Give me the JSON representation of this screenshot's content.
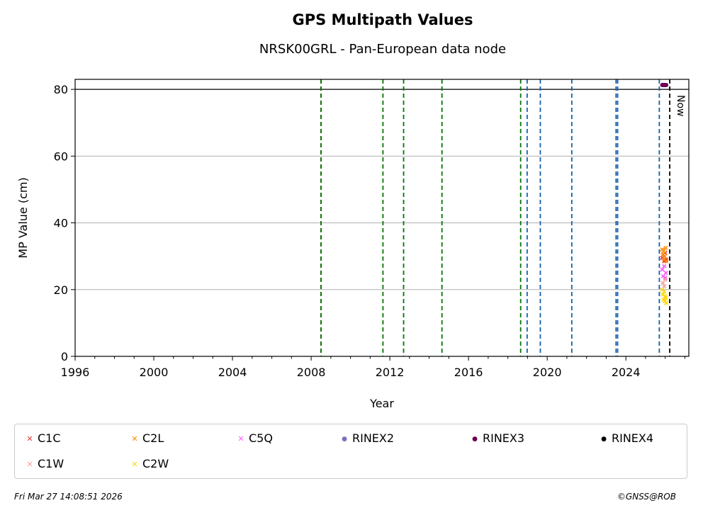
{
  "title": "GPS Multipath Values",
  "subtitle": "NRSK00GRL - Pan-European data node",
  "footer": {
    "timestamp": "Fri Mar 27 14:08:51 2026",
    "copyright": "©GNSS@ROB"
  },
  "colors": {
    "green_line": "#007700",
    "blue_line": "#1060b0",
    "red_line": "#dd0000",
    "now_line": "#000000",
    "grid": "#b0b0b0"
  },
  "chart_data": {
    "type": "scatter",
    "xlabel": "Year",
    "ylabel": "MP Value (cm)",
    "xlim": [
      1996,
      2027.2
    ],
    "ylim": [
      0,
      83
    ],
    "x_ticks": [
      "1996",
      "2000",
      "2004",
      "2008",
      "2012",
      "2016",
      "2020",
      "2024"
    ],
    "y_ticks": [
      "0",
      "20",
      "40",
      "60",
      "80"
    ],
    "grid": "horizontal",
    "reference_line_y": 80,
    "now_label": "Now",
    "now_x": 2026.23,
    "event_lines": [
      {
        "x": 2008.5,
        "color": "red"
      },
      {
        "x": 2008.5,
        "color": "green"
      },
      {
        "x": 2011.65,
        "color": "green"
      },
      {
        "x": 2012.7,
        "color": "green"
      },
      {
        "x": 2014.65,
        "color": "green"
      },
      {
        "x": 2018.65,
        "color": "green"
      },
      {
        "x": 2018.98,
        "color": "blue"
      },
      {
        "x": 2019.65,
        "color": "blue"
      },
      {
        "x": 2021.25,
        "color": "blue"
      },
      {
        "x": 2023.5,
        "color": "blue"
      },
      {
        "x": 2023.58,
        "color": "blue"
      },
      {
        "x": 2025.7,
        "color": "blue"
      }
    ],
    "series": [
      {
        "name": "C1C",
        "marker": "x",
        "color": "#e8352b",
        "x": [
          2025.85,
          2025.9,
          2025.95,
          2026.0,
          2026.05
        ],
        "y": [
          29.5,
          30.5,
          28.5,
          31.0,
          29.0
        ]
      },
      {
        "name": "C2L",
        "marker": "x",
        "color": "#ff8c00",
        "x": [
          2025.85,
          2025.88,
          2025.92,
          2025.95,
          2025.98,
          2026.02,
          2026.05
        ],
        "y": [
          32.0,
          30.5,
          31.5,
          29.0,
          30.0,
          32.5,
          28.5
        ]
      },
      {
        "name": "C5Q",
        "marker": "x",
        "color": "#ff55ff",
        "x": [
          2025.85,
          2025.9,
          2025.95,
          2026.0,
          2026.03
        ],
        "y": [
          26.0,
          24.0,
          27.0,
          23.5,
          25.0
        ]
      },
      {
        "name": "RINEX2",
        "marker": "o",
        "color": "#7b6fbf",
        "x": [],
        "y": []
      },
      {
        "name": "RINEX3",
        "marker": "o",
        "color": "#6a0050",
        "x": [
          2025.85,
          2025.9,
          2025.95,
          2026.0,
          2026.05
        ],
        "y": [
          81.3,
          81.3,
          81.3,
          81.3,
          81.3
        ]
      },
      {
        "name": "RINEX4",
        "marker": "o",
        "color": "#000000",
        "x": [],
        "y": []
      },
      {
        "name": "C1W",
        "marker": "x",
        "color": "#f4a0a0",
        "x": [
          2025.88,
          2025.95,
          2026.0
        ],
        "y": [
          22.0,
          21.0,
          23.0
        ]
      },
      {
        "name": "C2W",
        "marker": "x",
        "color": "#ffd700",
        "x": [
          2025.85,
          2025.88,
          2025.92,
          2025.95,
          2025.98,
          2026.0,
          2026.03,
          2026.05
        ],
        "y": [
          20.0,
          18.5,
          17.0,
          19.5,
          16.5,
          18.0,
          17.5,
          16.0
        ]
      }
    ]
  }
}
